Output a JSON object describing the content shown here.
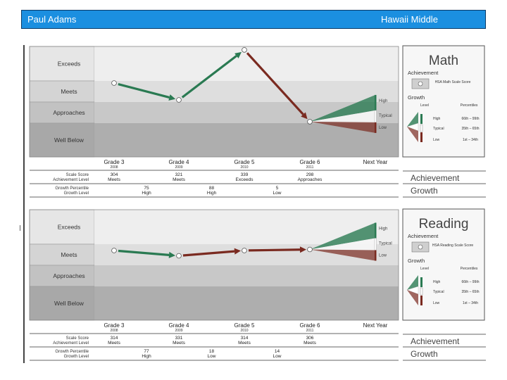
{
  "header": {
    "student": "Paul Adams",
    "school": "Hawaii Middle"
  },
  "levels": [
    "Exceeds",
    "Meets",
    "Approaches",
    "Well Below"
  ],
  "trend_labels": {
    "high": "High",
    "typical": "Typical",
    "low": "Low"
  },
  "row_labels": {
    "scale_score": "Scale Score",
    "achievement_level": "Achievement Level",
    "growth_percentile": "Growth Percentile",
    "growth_level": "Growth Level"
  },
  "legend": {
    "achievement": "Achievement",
    "growth_level_header": "Level",
    "percentiles_header": "Percentiles",
    "high": "High",
    "typical": "Typical",
    "low": "Low",
    "high_pct": "66th – 99th",
    "typical_pct": "35th – 65th",
    "low_pct": "1st – 34th"
  },
  "row_summary": {
    "achievement": "Achievement",
    "growth": "Growth"
  },
  "chart_data": [
    {
      "type": "line",
      "title": "Math",
      "legend_marker": "HSA Math Scale Score",
      "growth_legend": "Growth",
      "categories": [
        "Grade 3",
        "Grade 4",
        "Grade 5",
        "Grade 6",
        "Next Year"
      ],
      "years": [
        "2008",
        "2009",
        "2010",
        "2011",
        ""
      ],
      "y_band_levels": [
        "Well Below",
        "Approaches",
        "Meets",
        "Exceeds"
      ],
      "points": [
        {
          "grade": "Grade 3",
          "band": "Meets",
          "pos": 0.1
        },
        {
          "grade": "Grade 4",
          "band": "Meets",
          "pos": 0.9
        },
        {
          "grade": "Grade 5",
          "band": "Exceeds",
          "pos": 0.1
        },
        {
          "grade": "Grade 6",
          "band": "Approaches",
          "pos": 0.93
        }
      ],
      "segment_growth": [
        "High",
        "High",
        "Low"
      ],
      "scale_scores": [
        "304",
        "321",
        "339",
        "298"
      ],
      "achievement_levels": [
        "Meets",
        "Meets",
        "Exceeds",
        "Approaches"
      ],
      "growth_percentiles": [
        "75",
        "88",
        "5"
      ],
      "growth_levels": [
        "High",
        "High",
        "Low"
      ]
    },
    {
      "type": "line",
      "title": "Reading",
      "legend_marker": "HSA Reading Scale Score",
      "growth_legend": "Growth",
      "categories": [
        "Grade 3",
        "Grade 4",
        "Grade 5",
        "Grade 6",
        "Next Year"
      ],
      "years": [
        "2008",
        "2009",
        "2010",
        "2011",
        ""
      ],
      "y_band_levels": [
        "Well Below",
        "Approaches",
        "Meets",
        "Exceeds"
      ],
      "points": [
        {
          "grade": "Grade 3",
          "band": "Meets",
          "pos": 0.3
        },
        {
          "grade": "Grade 4",
          "band": "Meets",
          "pos": 0.55
        },
        {
          "grade": "Grade 5",
          "band": "Meets",
          "pos": 0.3
        },
        {
          "grade": "Grade 6",
          "band": "Meets",
          "pos": 0.25
        }
      ],
      "segment_growth": [
        "High",
        "Low",
        "Low"
      ],
      "scale_scores": [
        "314",
        "331",
        "314",
        "306"
      ],
      "achievement_levels": [
        "Meets",
        "Meets",
        "Meets",
        "Meets"
      ],
      "growth_percentiles": [
        "77",
        "18",
        "14"
      ],
      "growth_levels": [
        "High",
        "Low",
        "Low"
      ]
    }
  ]
}
